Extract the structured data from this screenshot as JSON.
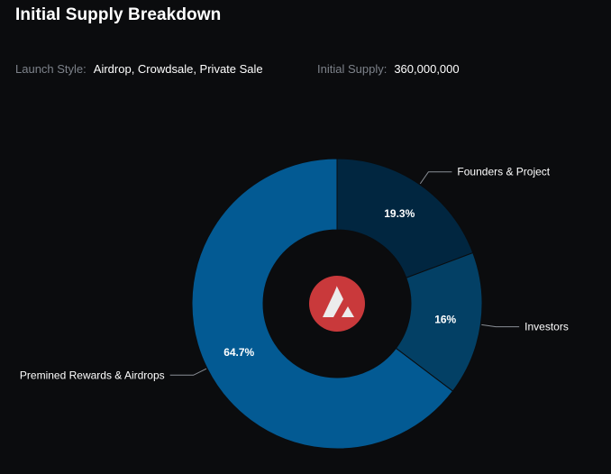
{
  "header": {
    "title": "Initial Supply Breakdown",
    "launch_style_label": "Launch Style:",
    "launch_style_value": "Airdrop, Crowdsale, Private Sale",
    "initial_supply_label": "Initial Supply:",
    "initial_supply_value": "360,000,000"
  },
  "center_logo": {
    "icon": "avalanche-logo-icon",
    "color": "#c9393b"
  },
  "chart_data": {
    "type": "pie",
    "title": "Initial Supply Breakdown",
    "donut": true,
    "slices": [
      {
        "label": "Founders & Project",
        "value": 19.3,
        "display": "19.3%",
        "color": "#012640"
      },
      {
        "label": "Investors",
        "value": 16,
        "display": "16%",
        "color": "#034065"
      },
      {
        "label": "Premined Rewards & Airdrops",
        "value": 64.7,
        "display": "64.7%",
        "color": "#035a93"
      }
    ]
  }
}
